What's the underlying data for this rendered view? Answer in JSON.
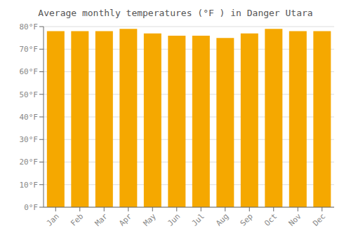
{
  "chart_data": {
    "type": "bar",
    "title": "Average monthly temperatures (°F ) in Danger Utara",
    "categories": [
      "Jan",
      "Feb",
      "Mar",
      "Apr",
      "May",
      "Jun",
      "Jul",
      "Aug",
      "Sep",
      "Oct",
      "Nov",
      "Dec"
    ],
    "values": [
      78,
      78,
      78,
      79,
      77,
      76,
      76,
      75,
      77,
      79,
      78,
      78
    ],
    "color": "#F5A800",
    "ylim": [
      0,
      80
    ],
    "yticks": [
      {
        "value": 0,
        "label": "0°F"
      },
      {
        "value": 10,
        "label": "10°F"
      },
      {
        "value": 20,
        "label": "20°F"
      },
      {
        "value": 30,
        "label": "30°F"
      },
      {
        "value": 40,
        "label": "40°F"
      },
      {
        "value": 50,
        "label": "50°F"
      },
      {
        "value": 60,
        "label": "60°F"
      },
      {
        "value": 70,
        "label": "70°F"
      },
      {
        "value": 80,
        "label": "80°F"
      }
    ],
    "grid": true
  }
}
